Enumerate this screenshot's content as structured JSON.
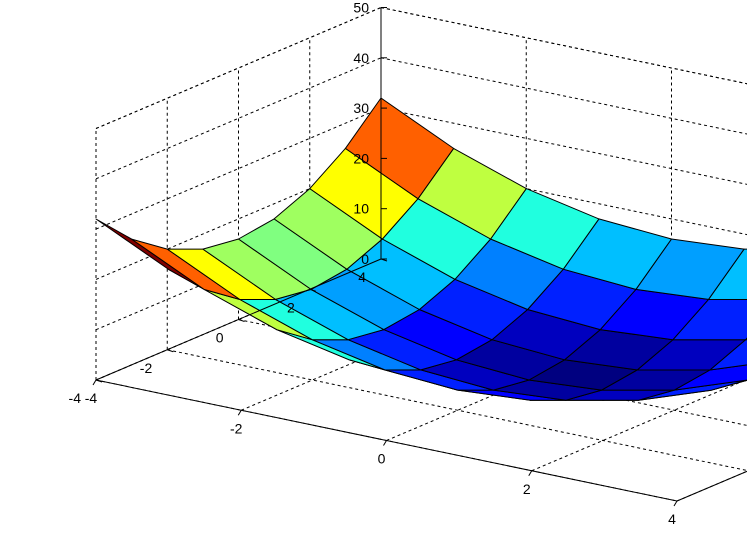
{
  "chart_data": {
    "type": "surface",
    "title": "",
    "xlabel": "",
    "ylabel": "",
    "zlabel": "",
    "x": [
      -4,
      -3,
      -2,
      -1,
      0,
      1,
      2,
      3,
      4
    ],
    "y": [
      -4,
      -3,
      -2,
      -1,
      0,
      1,
      2,
      3,
      4
    ],
    "formula": "z = x^2 + y^2",
    "colormap": "jet",
    "xlim": [
      -4,
      4
    ],
    "ylim": [
      -4,
      4
    ],
    "zlim": [
      0,
      50
    ],
    "grid": true,
    "x_ticks": [
      "-4",
      "-2",
      "0",
      "2",
      "4"
    ],
    "y_ticks": [
      "-4",
      "-2",
      "0",
      "2",
      "4"
    ],
    "z_ticks": [
      "0",
      "10",
      "20",
      "30",
      "40",
      "50"
    ],
    "x_tick_values": [
      -4,
      -2,
      0,
      2,
      4
    ],
    "y_tick_values": [
      -4,
      -2,
      0,
      2,
      4
    ],
    "z_tick_values": [
      0,
      10,
      20,
      30,
      40,
      50
    ]
  }
}
